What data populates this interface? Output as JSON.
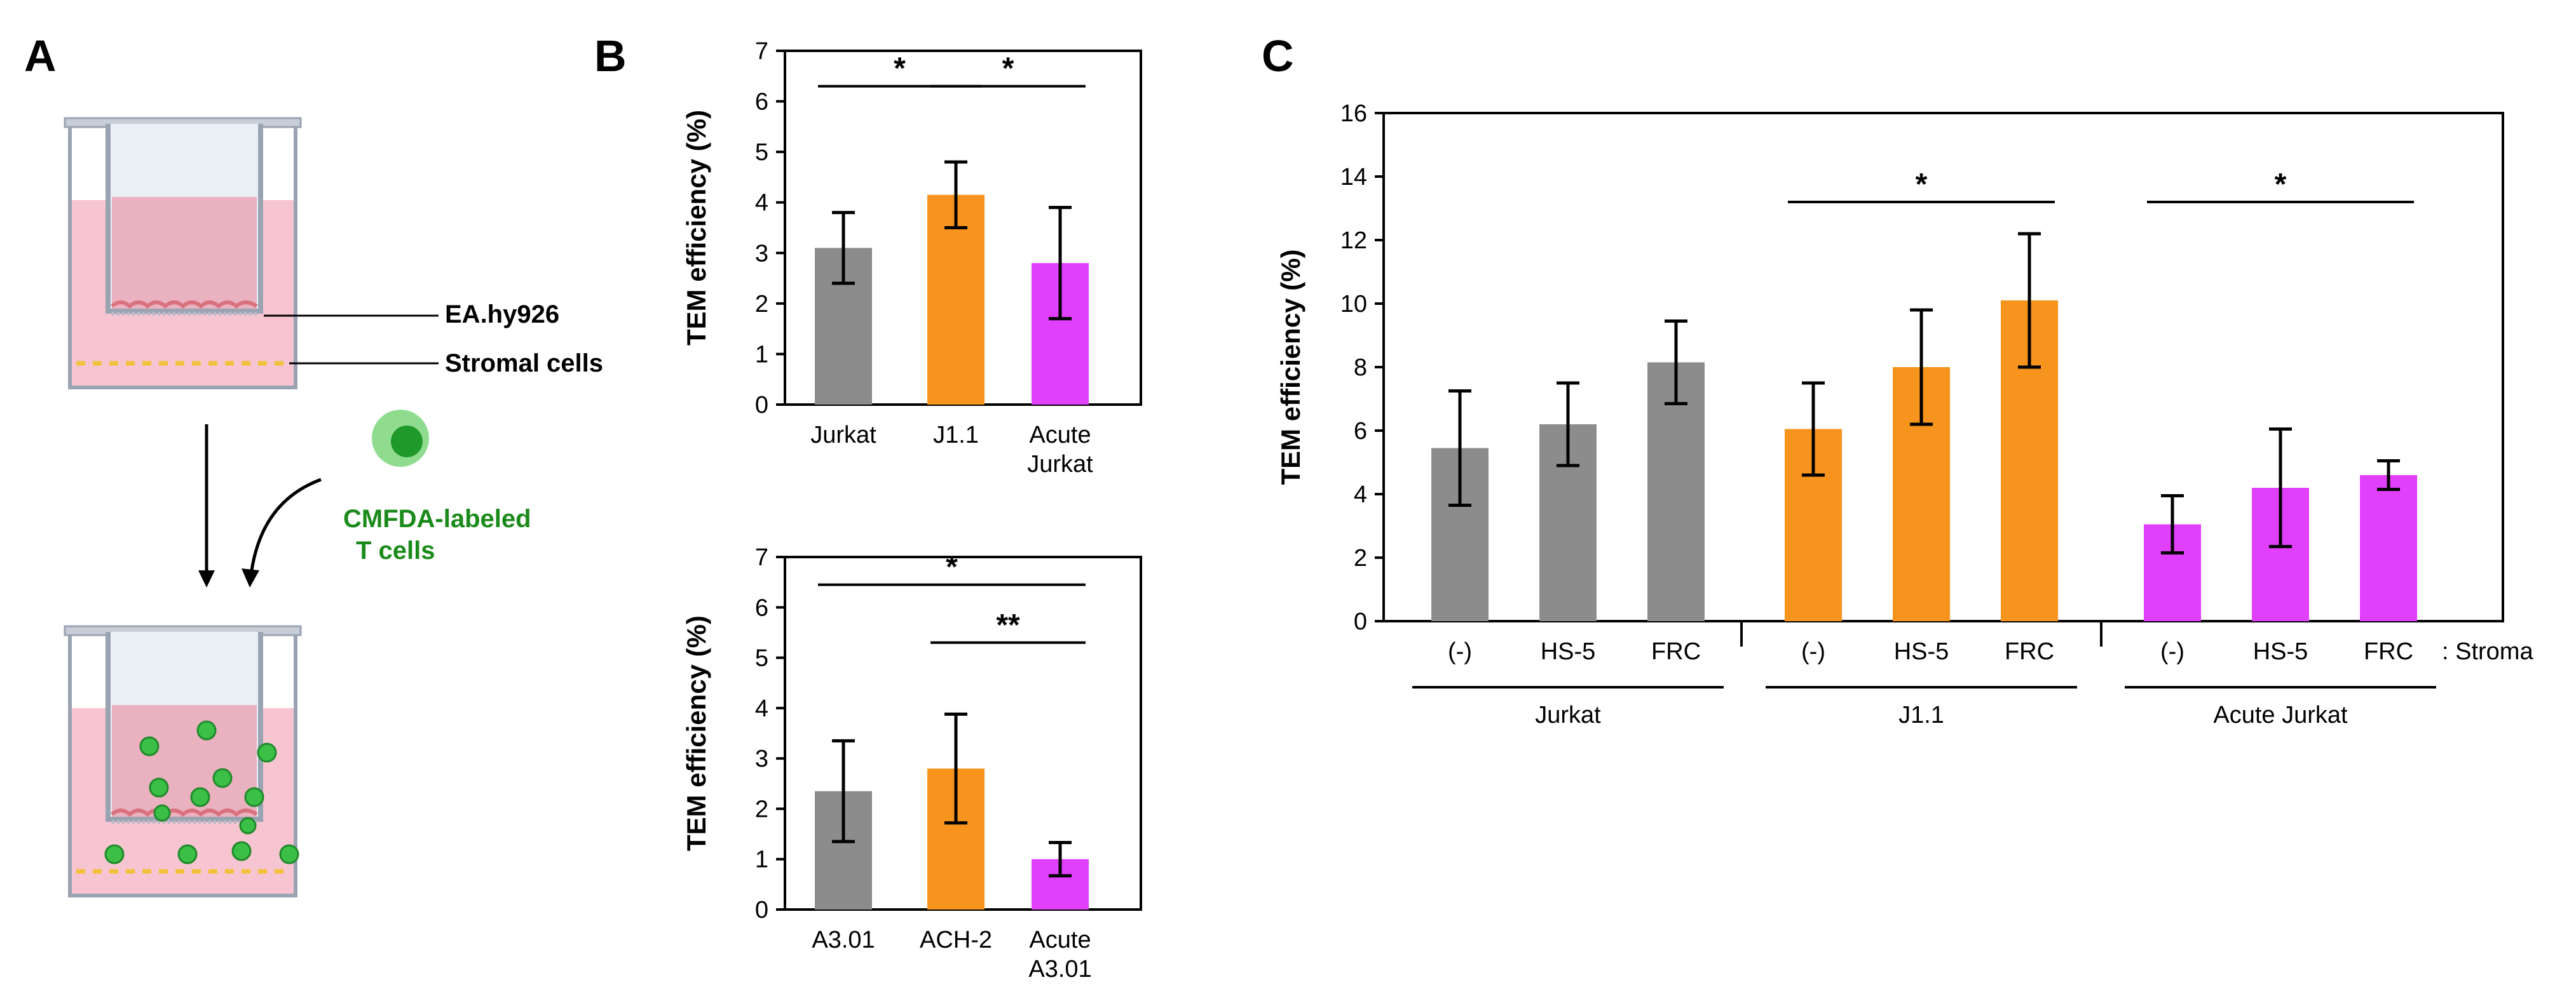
{
  "panel_labels": {
    "a": "A",
    "b": "B",
    "c": "C"
  },
  "schematic": {
    "label_endothelial": "EA.hy926",
    "label_stromal": "Stromal cells",
    "label_tcells_line1": "CMFDA-labeled",
    "label_tcells_line2": "T cells",
    "colors": {
      "frame": "#9aa3b2",
      "medium": "#f7c5d2",
      "upper_medium": "#eab1c0",
      "endothelial": "#d9727e",
      "stromal": "#f2c13a",
      "tcell": "#2fa83a"
    }
  },
  "colors": {
    "gray": "#8c8c8c",
    "orange": "#f7941d",
    "magenta": "#e040fb",
    "text_green": "#1a8a1a"
  },
  "chart_data": [
    {
      "id": "B_top",
      "type": "bar",
      "ylabel": "TEM efficiency (%)",
      "ylim": [
        0,
        7
      ],
      "yticks": [
        "0",
        "1",
        "2",
        "3",
        "4",
        "5",
        "6",
        "7"
      ],
      "categories": [
        [
          "Jurkat"
        ],
        [
          "J1.1"
        ],
        [
          "Acute",
          "Jurkat"
        ]
      ],
      "values": [
        3.1,
        4.15,
        2.8
      ],
      "errors": [
        0.7,
        0.65,
        1.1
      ],
      "bar_colors": [
        "gray",
        "orange",
        "magenta"
      ],
      "significance": [
        {
          "from": 0,
          "to": 1,
          "y": 6.3,
          "label": "*"
        },
        {
          "from": 1,
          "to": 2,
          "y": 6.3,
          "label": "*"
        }
      ]
    },
    {
      "id": "B_bottom",
      "type": "bar",
      "ylabel": "TEM efficiency (%)",
      "ylim": [
        0,
        7
      ],
      "yticks": [
        "0",
        "1",
        "2",
        "3",
        "4",
        "5",
        "6",
        "7"
      ],
      "categories": [
        [
          "A3.01"
        ],
        [
          "ACH-2"
        ],
        [
          "Acute",
          "A3.01"
        ]
      ],
      "values": [
        2.35,
        2.8,
        1.0
      ],
      "errors": [
        1.0,
        1.08,
        0.33
      ],
      "bar_colors": [
        "gray",
        "orange",
        "magenta"
      ],
      "significance": [
        {
          "from": 0,
          "to": 2,
          "y": 6.45,
          "label": "*"
        },
        {
          "from": 1,
          "to": 2,
          "y": 5.3,
          "label": "**"
        }
      ]
    },
    {
      "id": "C",
      "type": "bar",
      "ylabel": "TEM efficiency (%)",
      "ylim": [
        0,
        16
      ],
      "yticks": [
        "0",
        "2",
        "4",
        "6",
        "8",
        "10",
        "12",
        "14",
        "16"
      ],
      "categories": [
        [
          "(-)"
        ],
        [
          "HS-5"
        ],
        [
          "FRC"
        ],
        [
          "(-)"
        ],
        [
          "HS-5"
        ],
        [
          "FRC"
        ],
        [
          "(-)"
        ],
        [
          "HS-5"
        ],
        [
          "FRC"
        ]
      ],
      "values": [
        5.45,
        6.2,
        8.15,
        6.05,
        8.0,
        10.1,
        3.05,
        4.2,
        4.6
      ],
      "errors": [
        1.8,
        1.3,
        1.3,
        1.45,
        1.8,
        2.1,
        0.9,
        1.85,
        0.45
      ],
      "bar_colors": [
        "gray",
        "gray",
        "gray",
        "orange",
        "orange",
        "orange",
        "magenta",
        "magenta",
        "magenta"
      ],
      "groups": [
        {
          "label": "Jurkat",
          "from": 0,
          "to": 2
        },
        {
          "label": "J1.1",
          "from": 3,
          "to": 5
        },
        {
          "label": "Acute Jurkat",
          "from": 6,
          "to": 8
        }
      ],
      "axis_suffix": ": Stroma",
      "significance": [
        {
          "from": 3,
          "to": 5,
          "y": 13.2,
          "label": "*"
        },
        {
          "from": 6,
          "to": 8,
          "y": 13.2,
          "label": "*"
        }
      ]
    }
  ]
}
